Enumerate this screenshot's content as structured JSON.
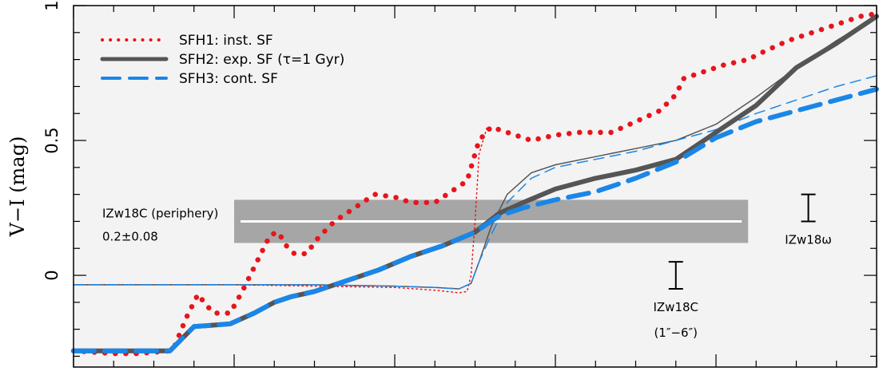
{
  "chart_data": {
    "type": "line",
    "ylabel": "V−I (mag)",
    "ylim": [
      -0.34,
      1.0
    ],
    "xlim": [
      0,
      10
    ],
    "yticks": [
      {
        "value": 0,
        "label": "0"
      },
      {
        "value": 0.5,
        "label": "0.5"
      },
      {
        "value": 1,
        "label": "1"
      }
    ],
    "grid": false,
    "legend_position": "top-left",
    "colors": {
      "background": "#f3f3f3",
      "sfh1": "#e8141b",
      "sfh2": "#555555",
      "sfh3": "#1a86e8",
      "band": "#a6a6a6"
    },
    "legend": [
      {
        "name": "SFH1: inst. SF",
        "color": "#e8141b",
        "style": "dotted"
      },
      {
        "name": "SFH2: exp. SF (τ=1 Gyr)",
        "color": "#555555",
        "style": "solid"
      },
      {
        "name": "SFH3: cont. SF",
        "color": "#1a86e8",
        "style": "dashed"
      }
    ],
    "series": [
      {
        "name": "SFH1: inst. SF",
        "variant": "thick",
        "color": "#e8141b",
        "style": "dotted",
        "points": [
          [
            0,
            -0.28
          ],
          [
            0.5,
            -0.29
          ],
          [
            0.8,
            -0.29
          ],
          [
            1.2,
            -0.28
          ],
          [
            1.25,
            -0.27
          ],
          [
            1.4,
            -0.16
          ],
          [
            1.55,
            -0.07
          ],
          [
            1.65,
            -0.11
          ],
          [
            1.75,
            -0.14
          ],
          [
            1.95,
            -0.14
          ],
          [
            2.1,
            -0.06
          ],
          [
            2.3,
            0.06
          ],
          [
            2.45,
            0.15
          ],
          [
            2.55,
            0.16
          ],
          [
            2.65,
            0.11
          ],
          [
            2.75,
            0.08
          ],
          [
            2.9,
            0.08
          ],
          [
            3.05,
            0.14
          ],
          [
            3.25,
            0.2
          ],
          [
            3.5,
            0.25
          ],
          [
            3.75,
            0.3
          ],
          [
            4.0,
            0.29
          ],
          [
            4.2,
            0.27
          ],
          [
            4.5,
            0.27
          ],
          [
            4.7,
            0.31
          ],
          [
            4.9,
            0.35
          ],
          [
            5.05,
            0.5
          ],
          [
            5.2,
            0.55
          ],
          [
            5.4,
            0.53
          ],
          [
            5.7,
            0.5
          ],
          [
            6.0,
            0.52
          ],
          [
            6.3,
            0.53
          ],
          [
            6.7,
            0.53
          ],
          [
            7.0,
            0.57
          ],
          [
            7.3,
            0.61
          ],
          [
            7.5,
            0.67
          ],
          [
            7.6,
            0.73
          ],
          [
            7.8,
            0.75
          ],
          [
            8.1,
            0.78
          ],
          [
            8.4,
            0.8
          ],
          [
            8.6,
            0.83
          ],
          [
            8.9,
            0.87
          ],
          [
            9.2,
            0.9
          ],
          [
            9.5,
            0.93
          ],
          [
            9.8,
            0.96
          ],
          [
            10.0,
            0.97
          ]
        ]
      },
      {
        "name": "SFH1: inst. SF",
        "variant": "thin",
        "color": "#e8141b",
        "style": "dotted",
        "points": [
          [
            0,
            -0.035
          ],
          [
            2.0,
            -0.035
          ],
          [
            3.0,
            -0.04
          ],
          [
            4.0,
            -0.045
          ],
          [
            4.5,
            -0.055
          ],
          [
            4.8,
            -0.065
          ],
          [
            4.9,
            -0.06
          ],
          [
            4.95,
            0.0
          ],
          [
            5.0,
            0.2
          ],
          [
            5.05,
            0.45
          ],
          [
            5.15,
            0.55
          ]
        ]
      },
      {
        "name": "SFH2: exp. SF (τ=1 Gyr)",
        "variant": "thick",
        "color": "#555555",
        "style": "solid",
        "points": [
          [
            0,
            -0.28
          ],
          [
            0.5,
            -0.28
          ],
          [
            0.8,
            -0.28
          ],
          [
            1.2,
            -0.28
          ],
          [
            1.5,
            -0.19
          ],
          [
            1.95,
            -0.18
          ],
          [
            2.25,
            -0.14
          ],
          [
            2.5,
            -0.1
          ],
          [
            2.7,
            -0.08
          ],
          [
            3.0,
            -0.06
          ],
          [
            3.4,
            -0.02
          ],
          [
            3.8,
            0.02
          ],
          [
            4.2,
            0.07
          ],
          [
            4.6,
            0.11
          ],
          [
            5.0,
            0.16
          ],
          [
            5.3,
            0.23
          ],
          [
            5.6,
            0.27
          ],
          [
            6.0,
            0.32
          ],
          [
            6.5,
            0.36
          ],
          [
            7.0,
            0.39
          ],
          [
            7.5,
            0.43
          ],
          [
            8.0,
            0.53
          ],
          [
            8.5,
            0.63
          ],
          [
            9.0,
            0.77
          ],
          [
            9.5,
            0.86
          ],
          [
            10.0,
            0.96
          ]
        ]
      },
      {
        "name": "SFH2: exp. SF (τ=1 Gyr)",
        "variant": "thin",
        "color": "#555555",
        "style": "solid",
        "points": [
          [
            0,
            -0.035
          ],
          [
            2.0,
            -0.035
          ],
          [
            3.0,
            -0.035
          ],
          [
            4.0,
            -0.04
          ],
          [
            4.5,
            -0.045
          ],
          [
            4.8,
            -0.05
          ],
          [
            4.95,
            -0.03
          ],
          [
            5.05,
            0.05
          ],
          [
            5.2,
            0.18
          ],
          [
            5.4,
            0.3
          ],
          [
            5.7,
            0.38
          ],
          [
            6.0,
            0.41
          ],
          [
            6.5,
            0.44
          ],
          [
            7.0,
            0.47
          ],
          [
            7.5,
            0.5
          ],
          [
            8.0,
            0.56
          ],
          [
            8.5,
            0.66
          ],
          [
            9.0,
            0.77
          ],
          [
            9.5,
            0.87
          ],
          [
            10.0,
            0.96
          ]
        ]
      },
      {
        "name": "SFH3: cont. SF",
        "variant": "thick",
        "color": "#1a86e8",
        "style": "dashed",
        "points": [
          [
            0,
            -0.28
          ],
          [
            0.5,
            -0.28
          ],
          [
            0.8,
            -0.28
          ],
          [
            1.2,
            -0.28
          ],
          [
            1.5,
            -0.19
          ],
          [
            1.95,
            -0.18
          ],
          [
            2.25,
            -0.14
          ],
          [
            2.5,
            -0.1
          ],
          [
            2.7,
            -0.08
          ],
          [
            3.0,
            -0.06
          ],
          [
            3.4,
            -0.02
          ],
          [
            3.8,
            0.02
          ],
          [
            4.2,
            0.07
          ],
          [
            4.6,
            0.11
          ],
          [
            5.0,
            0.16
          ],
          [
            5.3,
            0.22
          ],
          [
            5.6,
            0.25
          ],
          [
            6.0,
            0.28
          ],
          [
            6.5,
            0.31
          ],
          [
            7.0,
            0.36
          ],
          [
            7.5,
            0.42
          ],
          [
            8.0,
            0.51
          ],
          [
            8.5,
            0.57
          ],
          [
            9.0,
            0.61
          ],
          [
            9.5,
            0.65
          ],
          [
            10.0,
            0.69
          ]
        ]
      },
      {
        "name": "SFH3: cont. SF",
        "variant": "thin",
        "color": "#1a86e8",
        "style": "dashed",
        "points": [
          [
            0,
            -0.035
          ],
          [
            2.0,
            -0.035
          ],
          [
            3.0,
            -0.035
          ],
          [
            4.0,
            -0.04
          ],
          [
            4.5,
            -0.045
          ],
          [
            4.8,
            -0.05
          ],
          [
            4.95,
            -0.03
          ],
          [
            5.05,
            0.05
          ],
          [
            5.2,
            0.15
          ],
          [
            5.4,
            0.27
          ],
          [
            5.7,
            0.36
          ],
          [
            6.0,
            0.4
          ],
          [
            6.5,
            0.43
          ],
          [
            7.0,
            0.46
          ],
          [
            7.5,
            0.5
          ],
          [
            8.0,
            0.54
          ],
          [
            8.5,
            0.6
          ],
          [
            9.0,
            0.65
          ],
          [
            9.5,
            0.7
          ],
          [
            10.0,
            0.74
          ]
        ]
      }
    ],
    "band": {
      "label": "IZw18C (periphery)",
      "value_label": "0.2±0.08",
      "center": 0.2,
      "half_width": 0.08,
      "x_range": [
        2.0,
        8.4
      ]
    },
    "error_bars": [
      {
        "label": "IZw18ω",
        "x": 9.15,
        "low": 0.2,
        "high": 0.3
      },
      {
        "label": "IZw18C",
        "sublabel": "(1″−6″)",
        "x": 7.5,
        "low": -0.05,
        "high": 0.05
      }
    ]
  }
}
